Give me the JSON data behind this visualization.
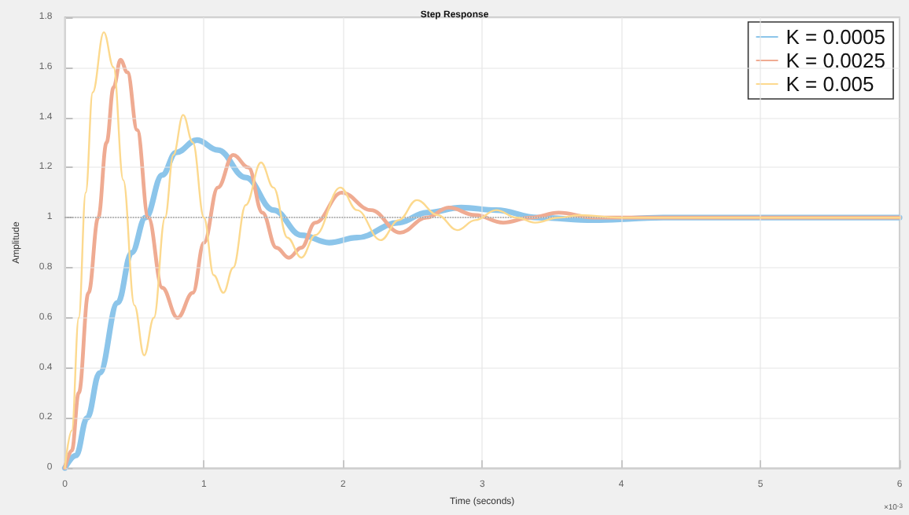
{
  "chart_data": {
    "type": "line",
    "title": "Step Response",
    "xlabel": "Time (seconds)",
    "ylabel": "Amplitude",
    "annotations": [
      "×10$^{-3}$"
    ],
    "xlim": [
      0,
      6
    ],
    "xticks": [
      0,
      1,
      2,
      3,
      4,
      5,
      6
    ],
    "ylim": [
      0,
      1.8
    ],
    "yticks": [
      0,
      0.2,
      0.4,
      0.6,
      0.8,
      1,
      1.2,
      1.4,
      1.6,
      1.8
    ],
    "grid": true,
    "legend": "top right",
    "marker": "none",
    "line_style": "solid",
    "ref_lines": [
      {
        "axis": "y",
        "value": 1,
        "color": "#999999",
        "line_style": "dotted"
      }
    ],
    "series": [
      {
        "name": "K = 0.0005",
        "color": "#8cc5ea",
        "x": [
          0,
          0.08,
          0.16,
          0.25,
          0.38,
          0.48,
          0.58,
          0.7,
          0.8,
          0.95,
          1.1,
          1.3,
          1.5,
          1.7,
          1.9,
          2.1,
          2.4,
          2.6,
          2.85,
          3.1,
          3.4,
          3.8,
          4.3,
          6
        ],
        "values": [
          0,
          0.05,
          0.2,
          0.38,
          0.66,
          0.86,
          1.0,
          1.17,
          1.26,
          1.31,
          1.27,
          1.16,
          1.03,
          0.93,
          0.9,
          0.92,
          0.98,
          1.02,
          1.04,
          1.03,
          1.0,
          0.99,
          1.0,
          1.0
        ]
      },
      {
        "name": "K = 0.0025",
        "color": "#efab92",
        "x": [
          0,
          0.05,
          0.1,
          0.17,
          0.24,
          0.3,
          0.35,
          0.4,
          0.45,
          0.52,
          0.6,
          0.7,
          0.81,
          0.92,
          1.0,
          1.1,
          1.21,
          1.32,
          1.42,
          1.52,
          1.61,
          1.7,
          1.8,
          1.99,
          2.2,
          2.41,
          2.6,
          2.76,
          2.95,
          3.15,
          3.35,
          3.55,
          3.8,
          4.2,
          6
        ],
        "values": [
          0,
          0.07,
          0.3,
          0.7,
          1.0,
          1.3,
          1.52,
          1.63,
          1.58,
          1.35,
          1.0,
          0.72,
          0.6,
          0.7,
          0.9,
          1.12,
          1.25,
          1.2,
          1.02,
          0.88,
          0.84,
          0.88,
          0.98,
          1.1,
          1.03,
          0.94,
          1.0,
          1.04,
          1.01,
          0.98,
          1.0,
          1.02,
          1.0,
          1.0,
          1.0
        ]
      },
      {
        "name": "K = 0.005",
        "color": "#fcd98e",
        "x": [
          0,
          0.05,
          0.1,
          0.15,
          0.2,
          0.28,
          0.35,
          0.42,
          0.5,
          0.57,
          0.64,
          0.72,
          0.78,
          0.85,
          0.92,
          1.0,
          1.07,
          1.14,
          1.21,
          1.3,
          1.41,
          1.5,
          1.6,
          1.7,
          1.8,
          1.98,
          2.1,
          2.27,
          2.4,
          2.53,
          2.68,
          2.82,
          2.95,
          3.1,
          3.25,
          3.38,
          3.55,
          3.7,
          4.0,
          6
        ],
        "values": [
          0,
          0.15,
          0.6,
          1.1,
          1.5,
          1.74,
          1.6,
          1.15,
          0.65,
          0.45,
          0.6,
          1.0,
          1.25,
          1.41,
          1.3,
          1.0,
          0.77,
          0.7,
          0.8,
          1.05,
          1.22,
          1.12,
          0.92,
          0.84,
          0.93,
          1.12,
          1.03,
          0.91,
          0.99,
          1.07,
          1.01,
          0.95,
          0.99,
          1.03,
          1.0,
          0.98,
          1.0,
          1.01,
          1.0,
          1.0
        ]
      }
    ]
  }
}
